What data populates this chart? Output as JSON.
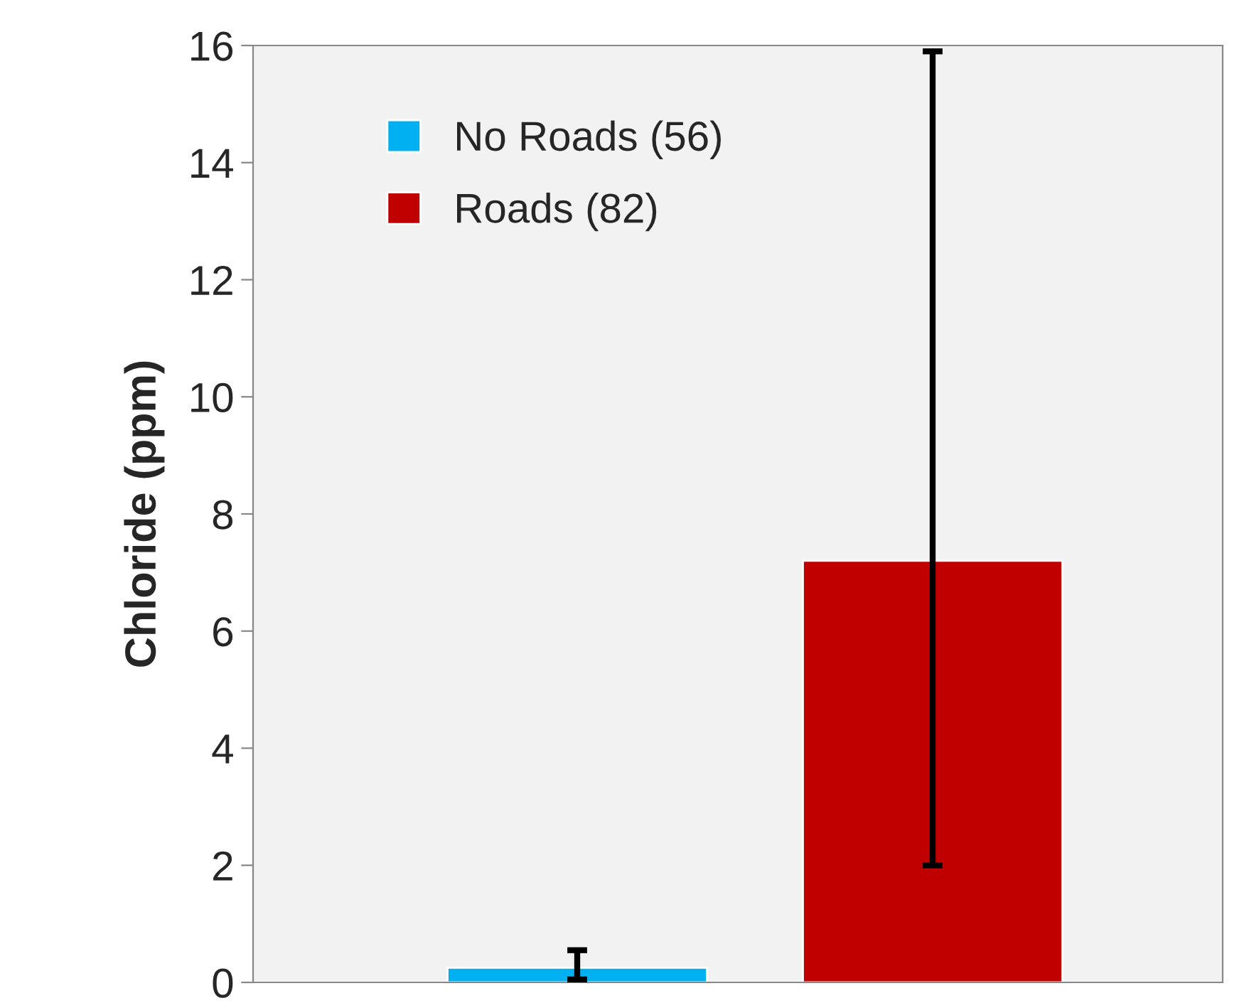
{
  "chart_data": {
    "type": "bar",
    "ylabel": "Chloride (ppm)",
    "categories": [
      null,
      null
    ],
    "series": [
      {
        "name": "No Roads (56)",
        "color": "#00b0f0",
        "values": [
          0.25,
          null
        ],
        "errors": [
          [
            0.05,
            0.55
          ],
          null
        ]
      },
      {
        "name": "Roads (82)",
        "color": "#c00000",
        "values": [
          null,
          7.2
        ],
        "errors": [
          null,
          [
            2.0,
            15.9
          ]
        ]
      }
    ],
    "ylim": [
      0,
      16
    ],
    "yticks": [
      0,
      2,
      4,
      6,
      8,
      10,
      12,
      14,
      16
    ],
    "grid": false,
    "legend": "top left",
    "tick_labels": "y"
  }
}
